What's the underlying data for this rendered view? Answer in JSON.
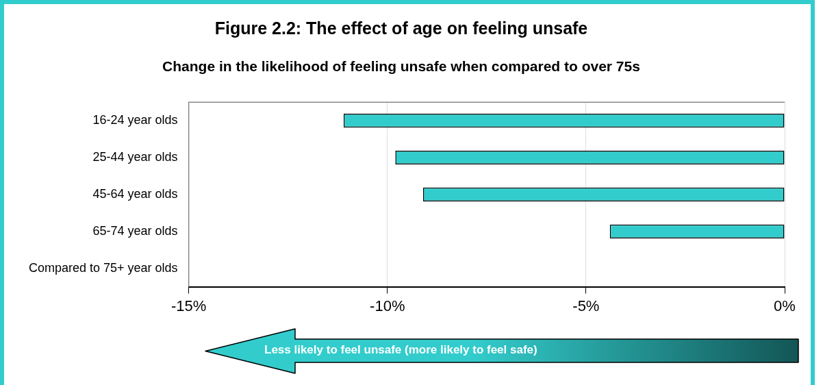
{
  "chart_data": {
    "type": "bar",
    "orientation": "horizontal",
    "title": "Figure 2.2: The effect of age on feeling unsafe",
    "subtitle": "Change in the likelihood of feeling unsafe when compared to over 75s",
    "categories": [
      "16-24 year olds",
      "25-44 year olds",
      "45-64 year olds",
      "65-74 year olds",
      "Compared to 75+ year olds"
    ],
    "values": [
      -11.1,
      -9.8,
      -9.1,
      -4.4,
      0
    ],
    "color": "#33cccc",
    "xlim": [
      -15,
      0
    ],
    "xticks": [
      {
        "value": -15,
        "label": "-15%"
      },
      {
        "value": -10,
        "label": "-10%"
      },
      {
        "value": -5,
        "label": "-5%"
      },
      {
        "value": 0,
        "label": "0%"
      }
    ],
    "grid": "x",
    "legend": false,
    "annotations": [
      "Less likely to feel unsafe (more likely to feel safe)"
    ]
  }
}
